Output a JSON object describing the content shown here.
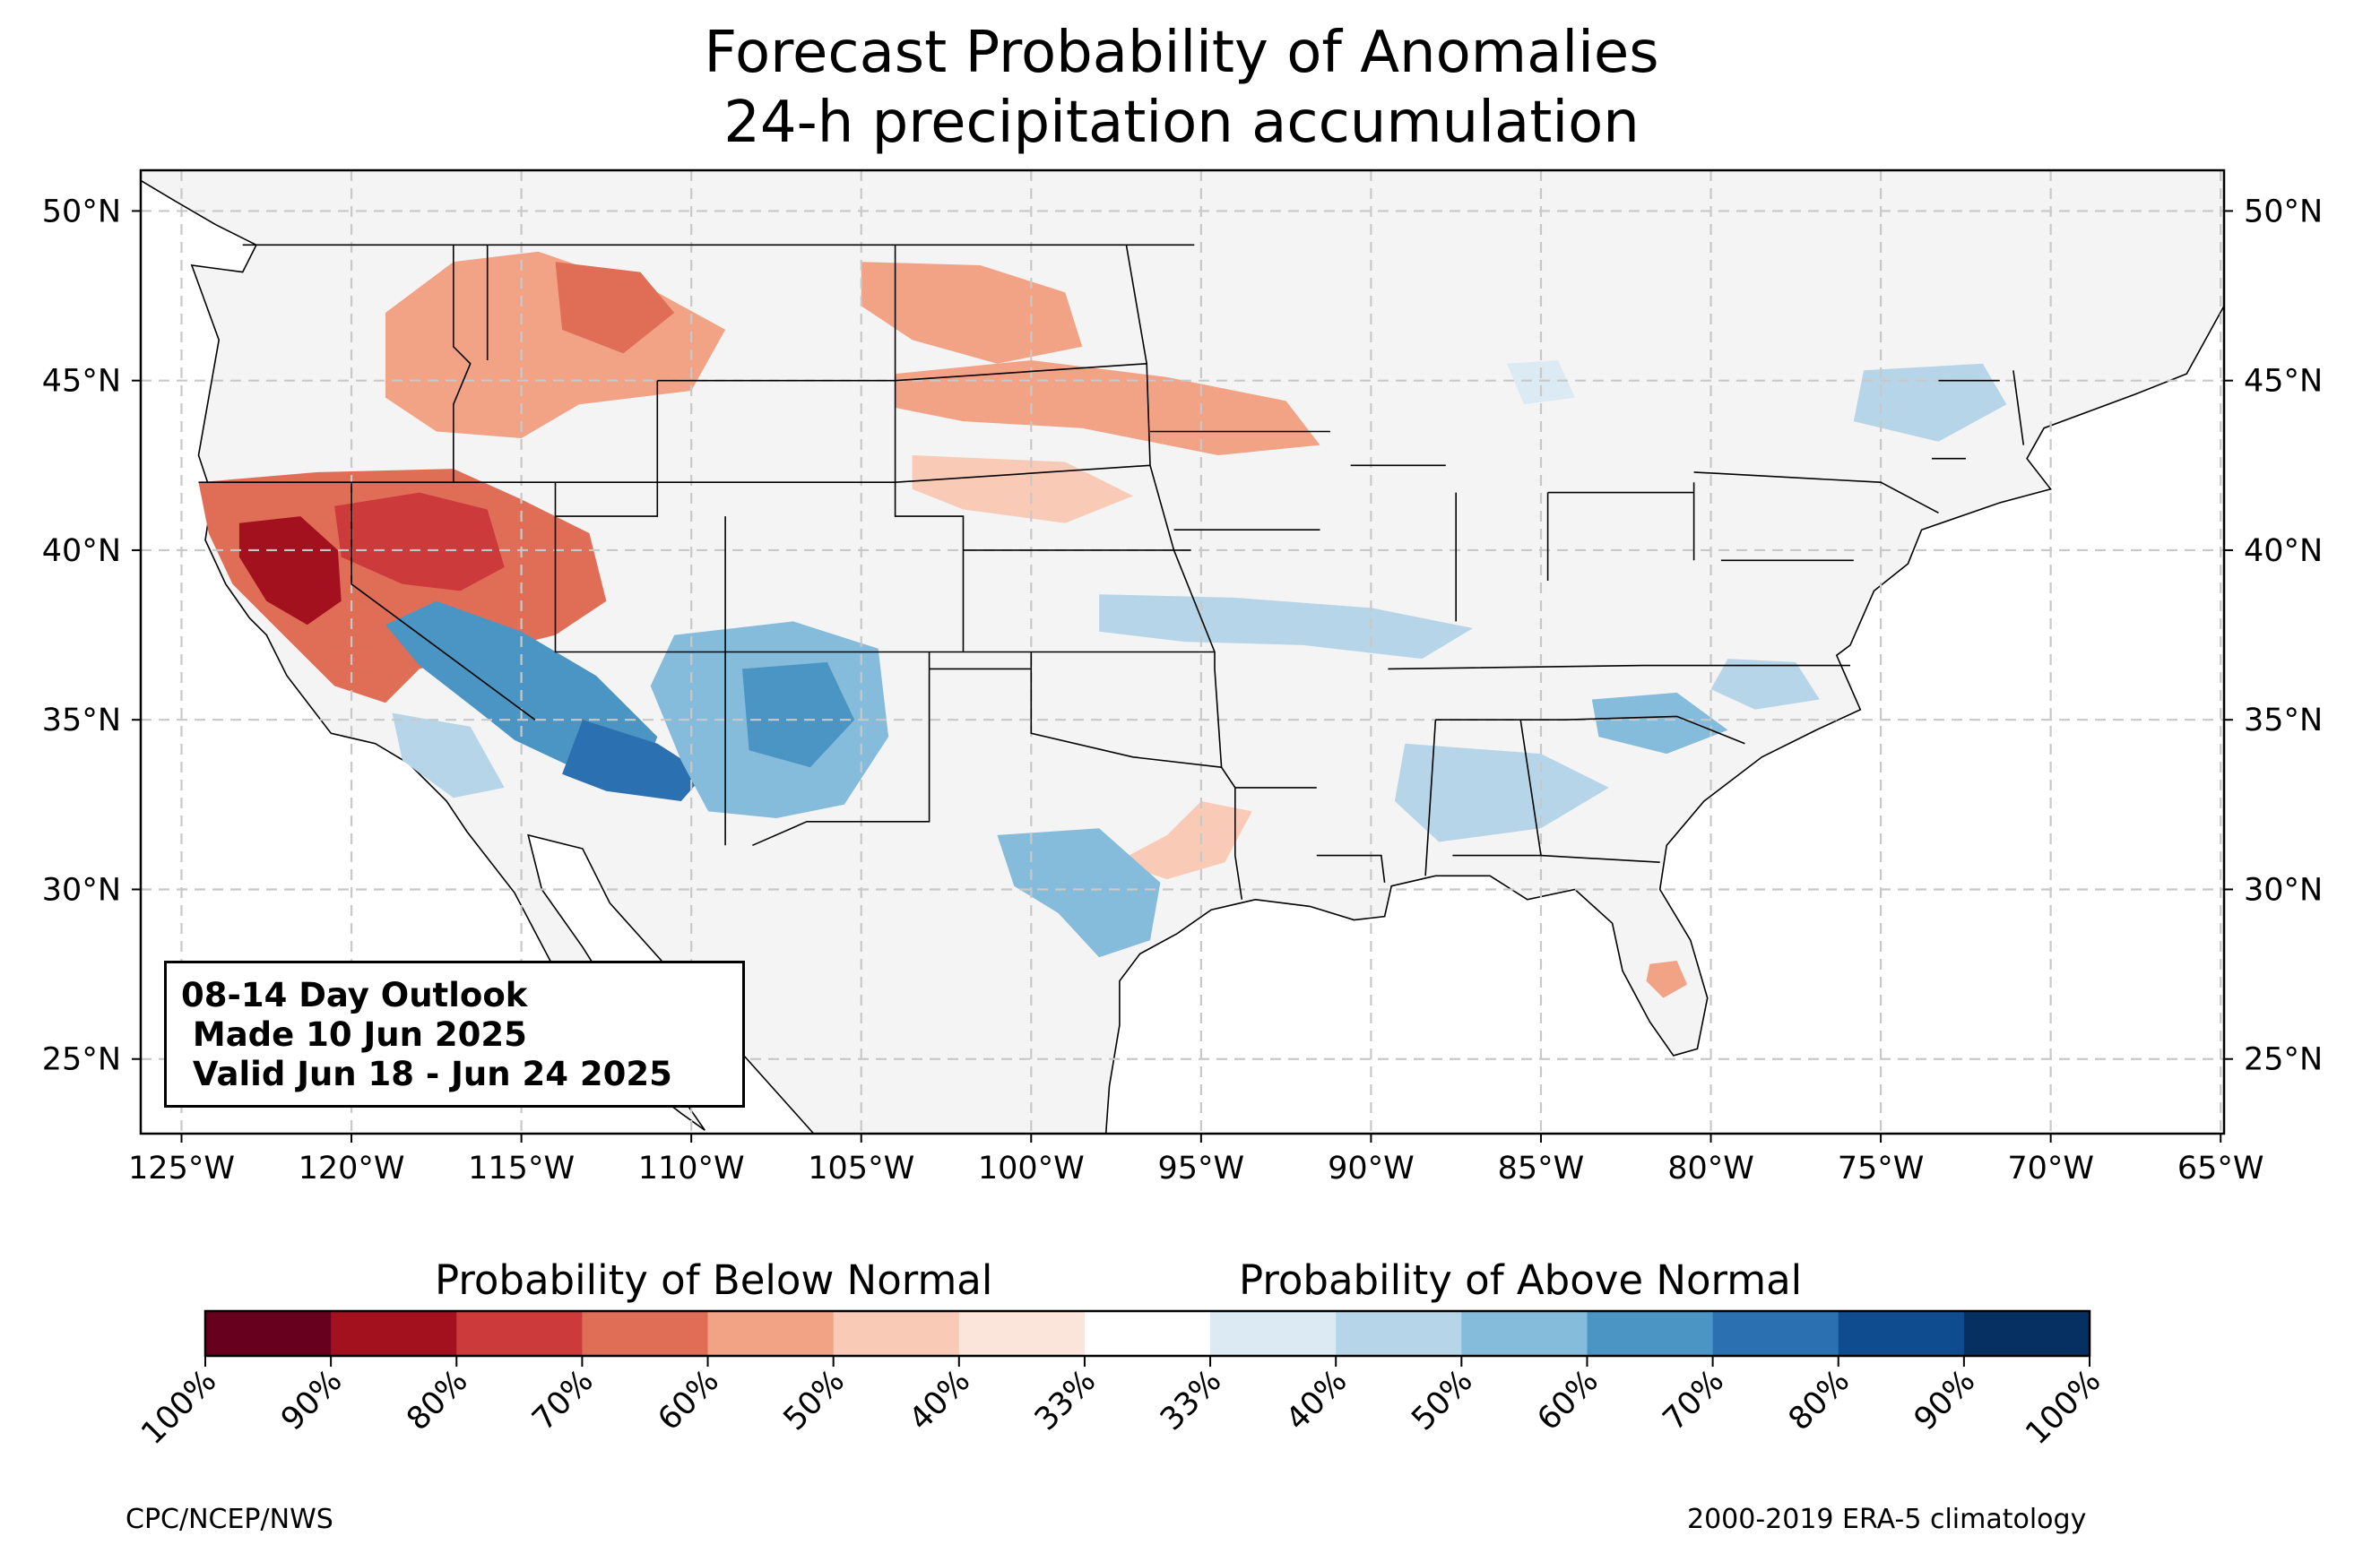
{
  "title": [
    "Forecast Probability of Anomalies",
    "24-h precipitation accumulation"
  ],
  "map": {
    "projection": "PlateCarree",
    "lon_range": [
      -126.2,
      -64.9
    ],
    "lat_range": [
      22.8,
      51.2
    ],
    "lon_ticks": [
      -125,
      -120,
      -115,
      -110,
      -105,
      -100,
      -95,
      -90,
      -85,
      -80,
      -75,
      -70,
      -65
    ],
    "lon_tick_labels": [
      "125°W",
      "120°W",
      "115°W",
      "110°W",
      "105°W",
      "100°W",
      "95°W",
      "90°W",
      "85°W",
      "80°W",
      "75°W",
      "70°W",
      "65°W"
    ],
    "lat_ticks": [
      50,
      45,
      40,
      35,
      30,
      25
    ],
    "lat_tick_labels": [
      "50°N",
      "45°N",
      "40°N",
      "35°N",
      "30°N",
      "25°N"
    ],
    "grid": true,
    "land_color": "#f4f4f4",
    "border_color": "#000000"
  },
  "outlook": {
    "lines": [
      "08-14 Day Outlook",
      " Made 10 Jun 2025",
      " Valid Jun 18 - Jun 24 2025"
    ]
  },
  "colorbar": {
    "label_below": "Probability of Below Normal",
    "label_above": "Probability of Above Normal",
    "colors": [
      "#67001f",
      "#a3111f",
      "#cc3a3c",
      "#e06e57",
      "#f2a285",
      "#f9cbb6",
      "#fbe5da",
      "#ffffff",
      "#dbeaf3",
      "#b7d5e8",
      "#86bcdb",
      "#4b95c4",
      "#2b70b0",
      "#0f4c8f",
      "#053061"
    ],
    "tick_labels": [
      "100%",
      "90%",
      "80%",
      "70%",
      "60%",
      "50%",
      "40%",
      "33%",
      "33%",
      "40%",
      "50%",
      "60%",
      "70%",
      "80%",
      "90%",
      "100%"
    ]
  },
  "anomaly_regions": [
    {
      "prob": 0.7,
      "category": "below",
      "polygon": [
        [
          -124.5,
          42
        ],
        [
          -121,
          42.3
        ],
        [
          -117,
          42.4
        ],
        [
          -115,
          41.5
        ],
        [
          -113,
          40.5
        ],
        [
          -112.5,
          38.5
        ],
        [
          -114,
          37.5
        ],
        [
          -116,
          37
        ],
        [
          -118,
          36.5
        ],
        [
          -119,
          35.5
        ],
        [
          -120.5,
          36
        ],
        [
          -122,
          37.5
        ],
        [
          -123.5,
          39
        ],
        [
          -124.2,
          40.5
        ]
      ]
    },
    {
      "prob": 0.9,
      "category": "below",
      "polygon": [
        [
          -123.3,
          40.8
        ],
        [
          -121.5,
          41
        ],
        [
          -120.4,
          40
        ],
        [
          -120.3,
          38.5
        ],
        [
          -121.3,
          37.8
        ],
        [
          -122.5,
          38.5
        ],
        [
          -123.3,
          39.8
        ]
      ]
    },
    {
      "prob": 0.8,
      "category": "below",
      "polygon": [
        [
          -120.5,
          41.3
        ],
        [
          -118,
          41.7
        ],
        [
          -116,
          41.2
        ],
        [
          -115.5,
          39.5
        ],
        [
          -116.8,
          38.8
        ],
        [
          -118.5,
          39
        ],
        [
          -120.3,
          39.8
        ]
      ]
    },
    {
      "prob": 0.6,
      "category": "below",
      "polygon": [
        [
          -119,
          47
        ],
        [
          -117,
          48.5
        ],
        [
          -114.5,
          48.8
        ],
        [
          -111,
          47.6
        ],
        [
          -109,
          46.5
        ],
        [
          -110,
          44.7
        ],
        [
          -113.3,
          44.3
        ],
        [
          -115,
          43.3
        ],
        [
          -117.5,
          43.5
        ],
        [
          -119,
          44.5
        ]
      ]
    },
    {
      "prob": 0.7,
      "category": "below",
      "polygon": [
        [
          -114,
          48.5
        ],
        [
          -111.5,
          48.2
        ],
        [
          -110.5,
          47
        ],
        [
          -112,
          45.8
        ],
        [
          -113.8,
          46.5
        ]
      ]
    },
    {
      "prob": 0.6,
      "category": "below",
      "polygon": [
        [
          -105,
          48.5
        ],
        [
          -101.5,
          48.4
        ],
        [
          -99,
          47.6
        ],
        [
          -98.5,
          46
        ],
        [
          -101,
          45.5
        ],
        [
          -103.5,
          46.2
        ],
        [
          -105,
          47.2
        ]
      ]
    },
    {
      "prob": 0.6,
      "category": "below",
      "polygon": [
        [
          -104,
          45.2
        ],
        [
          -100,
          45.6
        ],
        [
          -96,
          45.1
        ],
        [
          -92.5,
          44.4
        ],
        [
          -91.5,
          43.1
        ],
        [
          -94.5,
          42.8
        ],
        [
          -98.5,
          43.6
        ],
        [
          -102,
          43.8
        ],
        [
          -104,
          44.2
        ]
      ]
    },
    {
      "prob": 0.5,
      "category": "below",
      "polygon": [
        [
          -103.5,
          42.8
        ],
        [
          -99,
          42.6
        ],
        [
          -97,
          41.6
        ],
        [
          -99,
          40.8
        ],
        [
          -102,
          41.2
        ],
        [
          -103.5,
          41.8
        ]
      ]
    },
    {
      "prob": 0.5,
      "category": "below",
      "polygon": [
        [
          -97.5,
          30.8
        ],
        [
          -96,
          31.6
        ],
        [
          -95,
          32.6
        ],
        [
          -93.5,
          32.3
        ],
        [
          -94.3,
          30.8
        ],
        [
          -96,
          30.3
        ]
      ]
    },
    {
      "prob": 0.6,
      "category": "below",
      "polygon": [
        [
          -81.8,
          27.8
        ],
        [
          -81,
          27.9
        ],
        [
          -80.7,
          27.2
        ],
        [
          -81.4,
          26.8
        ],
        [
          -81.9,
          27.3
        ]
      ]
    },
    {
      "prob": 0.7,
      "category": "above",
      "polygon": [
        [
          -117.5,
          38.5
        ],
        [
          -115,
          37.6
        ],
        [
          -112.8,
          36.3
        ],
        [
          -111,
          34.5
        ],
        [
          -111.5,
          33.2
        ],
        [
          -113.5,
          33.6
        ],
        [
          -115.2,
          34.4
        ],
        [
          -116.2,
          35.2
        ],
        [
          -118,
          36.6
        ],
        [
          -119,
          37.8
        ]
      ]
    },
    {
      "prob": 0.8,
      "category": "above",
      "polygon": [
        [
          -113.2,
          35
        ],
        [
          -111,
          34.3
        ],
        [
          -109.6,
          33.4
        ],
        [
          -110.3,
          32.6
        ],
        [
          -112.5,
          32.9
        ],
        [
          -113.8,
          33.4
        ]
      ]
    },
    {
      "prob": 0.6,
      "category": "above",
      "polygon": [
        [
          -110.5,
          37.5
        ],
        [
          -107,
          37.9
        ],
        [
          -104.5,
          37.1
        ],
        [
          -104.2,
          34.5
        ],
        [
          -105.5,
          32.5
        ],
        [
          -107.5,
          32.1
        ],
        [
          -109.5,
          32.3
        ],
        [
          -110.3,
          33.8
        ],
        [
          -111.2,
          36
        ]
      ]
    },
    {
      "prob": 0.7,
      "category": "above",
      "polygon": [
        [
          -108.5,
          36.5
        ],
        [
          -106,
          36.7
        ],
        [
          -105.2,
          35
        ],
        [
          -106.5,
          33.6
        ],
        [
          -108.3,
          34.1
        ]
      ]
    },
    {
      "prob": 0.5,
      "category": "above",
      "polygon": [
        [
          -118.8,
          35.2
        ],
        [
          -116.5,
          34.8
        ],
        [
          -115.5,
          33
        ],
        [
          -117,
          32.7
        ],
        [
          -118.5,
          33.8
        ]
      ]
    },
    {
      "prob": 0.6,
      "category": "above",
      "polygon": [
        [
          -101,
          31.6
        ],
        [
          -98,
          31.8
        ],
        [
          -96.2,
          30.2
        ],
        [
          -96.5,
          28.5
        ],
        [
          -98,
          28
        ],
        [
          -99.2,
          29.3
        ],
        [
          -100.5,
          30.1
        ]
      ]
    },
    {
      "prob": 0.5,
      "category": "above",
      "polygon": [
        [
          -98,
          38.7
        ],
        [
          -94,
          38.6
        ],
        [
          -90,
          38.3
        ],
        [
          -87,
          37.7
        ],
        [
          -88.5,
          36.8
        ],
        [
          -92,
          37.2
        ],
        [
          -95.5,
          37.3
        ],
        [
          -98,
          37.6
        ]
      ]
    },
    {
      "prob": 0.5,
      "category": "above",
      "polygon": [
        [
          -89,
          34.3
        ],
        [
          -85,
          34
        ],
        [
          -83,
          33
        ],
        [
          -85,
          31.8
        ],
        [
          -88,
          31.4
        ],
        [
          -89.3,
          32.6
        ]
      ]
    },
    {
      "prob": 0.6,
      "category": "above",
      "polygon": [
        [
          -83.5,
          35.6
        ],
        [
          -81,
          35.8
        ],
        [
          -79.5,
          34.7
        ],
        [
          -81.3,
          34
        ],
        [
          -83.3,
          34.5
        ]
      ]
    },
    {
      "prob": 0.5,
      "category": "above",
      "polygon": [
        [
          -79.5,
          36.8
        ],
        [
          -77.5,
          36.7
        ],
        [
          -76.8,
          35.6
        ],
        [
          -78.7,
          35.3
        ],
        [
          -80,
          35.9
        ]
      ]
    },
    {
      "prob": 0.5,
      "category": "above",
      "polygon": [
        [
          -75.5,
          45.3
        ],
        [
          -72,
          45.5
        ],
        [
          -71.3,
          44.3
        ],
        [
          -73.3,
          43.2
        ],
        [
          -75.8,
          43.8
        ]
      ]
    },
    {
      "prob": 0.4,
      "category": "above",
      "polygon": [
        [
          -86,
          45.5
        ],
        [
          -84.5,
          45.6
        ],
        [
          -84,
          44.5
        ],
        [
          -85.5,
          44.3
        ]
      ]
    }
  ]
}
